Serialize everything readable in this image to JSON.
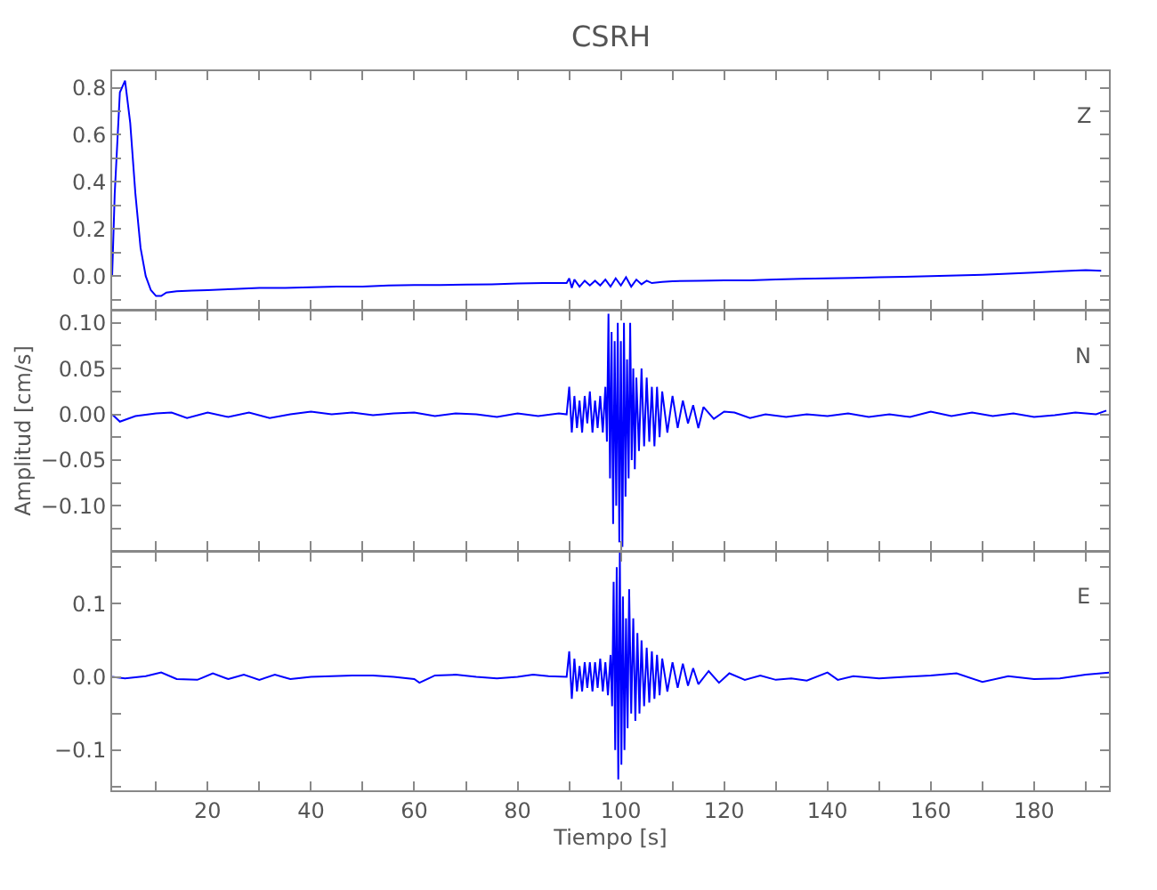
{
  "chart_data": [
    {
      "type": "line",
      "title": "CSRH",
      "annotations": [
        "Z"
      ],
      "xlim": [
        1.5,
        194.5
      ],
      "tick_labels": "y",
      "xticks": [
        {
          "value": 10,
          "label": null
        },
        {
          "value": 20,
          "label": null
        },
        {
          "value": 30,
          "label": null
        },
        {
          "value": 40,
          "label": null
        },
        {
          "value": 50,
          "label": null
        },
        {
          "value": 60,
          "label": null
        },
        {
          "value": 70,
          "label": null
        },
        {
          "value": 80,
          "label": null
        },
        {
          "value": 90,
          "label": null
        },
        {
          "value": 100,
          "label": null
        },
        {
          "value": 110,
          "label": null
        },
        {
          "value": 120,
          "label": null
        },
        {
          "value": 130,
          "label": null
        },
        {
          "value": 140,
          "label": null
        },
        {
          "value": 150,
          "label": null
        },
        {
          "value": 160,
          "label": null
        },
        {
          "value": 170,
          "label": null
        },
        {
          "value": 180,
          "label": null
        },
        {
          "value": 190,
          "label": null
        }
      ],
      "ylim": [
        -0.14,
        0.87
      ],
      "yticks": [
        {
          "value": -0.1,
          "label": null
        },
        {
          "value": 0,
          "label": "0.0"
        },
        {
          "value": 0.1,
          "label": null
        },
        {
          "value": 0.2,
          "label": "0.2"
        },
        {
          "value": 0.3,
          "label": null
        },
        {
          "value": 0.4,
          "label": "0.4"
        },
        {
          "value": 0.5,
          "label": null
        },
        {
          "value": 0.6,
          "label": "0.6"
        },
        {
          "value": 0.7,
          "label": null
        },
        {
          "value": 0.8,
          "label": "0.8"
        }
      ],
      "x": [
        1.5,
        2,
        3,
        4,
        5,
        6,
        7,
        8,
        9,
        10,
        11,
        12,
        14,
        17,
        20,
        25,
        30,
        35,
        40,
        45,
        50,
        55,
        60,
        65,
        70,
        75,
        80,
        85,
        89.5,
        90,
        90.5,
        91,
        92,
        93,
        94,
        95,
        96,
        97,
        98,
        99,
        100,
        101,
        102,
        103,
        104,
        105,
        106,
        108,
        110,
        115,
        120,
        125,
        130,
        135,
        140,
        145,
        150,
        155,
        160,
        165,
        170,
        175,
        180,
        185,
        190,
        193
      ],
      "series": [
        {
          "color": "#0000ff",
          "values": [
            0,
            0.35,
            0.78,
            0.83,
            0.65,
            0.35,
            0.12,
            0.0,
            -0.06,
            -0.085,
            -0.085,
            -0.07,
            -0.065,
            -0.062,
            -0.06,
            -0.055,
            -0.05,
            -0.05,
            -0.048,
            -0.045,
            -0.045,
            -0.04,
            -0.038,
            -0.038,
            -0.036,
            -0.035,
            -0.032,
            -0.03,
            -0.03,
            -0.01,
            -0.05,
            -0.015,
            -0.045,
            -0.02,
            -0.04,
            -0.02,
            -0.04,
            -0.015,
            -0.045,
            -0.01,
            -0.04,
            -0.005,
            -0.045,
            -0.015,
            -0.035,
            -0.02,
            -0.03,
            -0.025,
            -0.022,
            -0.02,
            -0.018,
            -0.018,
            -0.015,
            -0.012,
            -0.01,
            -0.008,
            -0.005,
            -0.003,
            0.0,
            0.002,
            0.005,
            0.01,
            0.015,
            0.02,
            0.025,
            0.022
          ]
        }
      ]
    },
    {
      "type": "line",
      "ylabel": "Amplitud [cm/s]",
      "annotations": [
        "N"
      ],
      "xlim": [
        1.5,
        194.5
      ],
      "tick_labels": "y",
      "xticks": [
        {
          "value": 10,
          "label": null
        },
        {
          "value": 20,
          "label": null
        },
        {
          "value": 30,
          "label": null
        },
        {
          "value": 40,
          "label": null
        },
        {
          "value": 50,
          "label": null
        },
        {
          "value": 60,
          "label": null
        },
        {
          "value": 70,
          "label": null
        },
        {
          "value": 80,
          "label": null
        },
        {
          "value": 90,
          "label": null
        },
        {
          "value": 100,
          "label": null
        },
        {
          "value": 110,
          "label": null
        },
        {
          "value": 120,
          "label": null
        },
        {
          "value": 130,
          "label": null
        },
        {
          "value": 140,
          "label": null
        },
        {
          "value": 150,
          "label": null
        },
        {
          "value": 160,
          "label": null
        },
        {
          "value": 170,
          "label": null
        },
        {
          "value": 180,
          "label": null
        },
        {
          "value": 190,
          "label": null
        }
      ],
      "ylim": [
        -0.148,
        0.112
      ],
      "yticks": [
        {
          "value": -0.125,
          "label": null
        },
        {
          "value": -0.1,
          "label": "−0.10"
        },
        {
          "value": -0.075,
          "label": null
        },
        {
          "value": -0.05,
          "label": "−0.05"
        },
        {
          "value": -0.025,
          "label": null
        },
        {
          "value": 0,
          "label": "0.00"
        },
        {
          "value": 0.025,
          "label": null
        },
        {
          "value": 0.05,
          "label": "0.05"
        },
        {
          "value": 0.075,
          "label": null
        },
        {
          "value": 0.1,
          "label": "0.10"
        }
      ],
      "x": [
        1.5,
        3,
        6,
        10,
        13,
        16,
        20,
        24,
        28,
        32,
        36,
        40,
        44,
        48,
        52,
        56,
        60,
        64,
        68,
        72,
        76,
        80,
        84,
        88,
        89.5,
        90,
        90.5,
        91,
        91.5,
        92,
        92.5,
        93,
        93.5,
        94,
        94.5,
        95,
        95.5,
        96,
        96.5,
        97,
        97.3,
        97.6,
        97.9,
        98.2,
        98.5,
        98.8,
        99.1,
        99.4,
        99.7,
        100,
        100.3,
        100.6,
        100.9,
        101.2,
        101.5,
        101.8,
        102.1,
        102.4,
        102.7,
        103,
        103.5,
        104,
        104.5,
        105,
        105.5,
        106,
        106.5,
        107,
        107.5,
        108,
        109,
        110,
        111,
        112,
        113,
        114,
        115,
        116,
        118,
        120,
        122,
        125,
        128,
        132,
        136,
        140,
        144,
        148,
        152,
        156,
        160,
        164,
        168,
        172,
        176,
        180,
        184,
        188,
        192,
        194
      ],
      "series": [
        {
          "color": "#0000ff",
          "values": [
            0,
            -0.008,
            -0.002,
            0.001,
            0.002,
            -0.004,
            0.002,
            -0.003,
            0.002,
            -0.004,
            0.0,
            0.003,
            0.0,
            0.002,
            -0.001,
            0.001,
            0.002,
            -0.002,
            0.001,
            0.0,
            -0.003,
            0.001,
            -0.002,
            0.001,
            0,
            0.03,
            -0.02,
            0.02,
            -0.015,
            0.015,
            -0.02,
            0.02,
            -0.01,
            0.025,
            -0.02,
            0.015,
            -0.015,
            0.02,
            -0.02,
            0.03,
            -0.03,
            0.11,
            -0.07,
            0.09,
            -0.12,
            0.08,
            -0.1,
            0.1,
            -0.14,
            0.08,
            -0.145,
            0.1,
            -0.09,
            0.06,
            -0.07,
            0.1,
            -0.05,
            0.05,
            -0.06,
            0.04,
            -0.04,
            0.05,
            -0.035,
            0.04,
            -0.03,
            0.03,
            -0.035,
            0.03,
            -0.025,
            0.025,
            -0.02,
            0.02,
            -0.015,
            0.015,
            -0.01,
            0.01,
            -0.015,
            0.008,
            -0.005,
            0.003,
            0.002,
            -0.004,
            0.0,
            -0.003,
            0.0,
            -0.002,
            0.001,
            -0.003,
            0.0,
            -0.003,
            0.003,
            -0.002,
            0.002,
            -0.002,
            0.001,
            -0.003,
            -0.001,
            0.002,
            0.0,
            0.004
          ]
        }
      ]
    },
    {
      "type": "line",
      "xlabel": "Tiempo [s]",
      "annotations": [
        "E"
      ],
      "xlim": [
        1.5,
        194.5
      ],
      "xticks": [
        {
          "value": 10,
          "label": null
        },
        20,
        {
          "value": 30,
          "label": null
        },
        40,
        {
          "value": 50,
          "label": null
        },
        60,
        {
          "value": 70,
          "label": null
        },
        80,
        {
          "value": 90,
          "label": null
        },
        100,
        {
          "value": 110,
          "label": null
        },
        120,
        {
          "value": 130,
          "label": null
        },
        140,
        {
          "value": 150,
          "label": null
        },
        160,
        {
          "value": 170,
          "label": null
        },
        180,
        {
          "value": 190,
          "label": null
        }
      ],
      "ylim": [
        -0.155,
        0.17
      ],
      "yticks": [
        {
          "value": -0.15,
          "label": null
        },
        {
          "value": -0.1,
          "label": "−0.1"
        },
        {
          "value": -0.05,
          "label": null
        },
        {
          "value": 0,
          "label": "0.0"
        },
        {
          "value": 0.05,
          "label": null
        },
        {
          "value": 0.1,
          "label": "0.1"
        },
        {
          "value": 0.15,
          "label": null
        }
      ],
      "x": [
        1.5,
        4,
        8,
        11,
        14,
        18,
        21,
        24,
        27,
        30,
        33,
        36,
        40,
        44,
        48,
        52,
        56,
        60,
        61,
        64,
        68,
        72,
        76,
        80,
        83,
        86,
        89.5,
        90,
        90.5,
        91,
        91.5,
        92,
        92.5,
        93,
        93.5,
        94,
        94.5,
        95,
        95.5,
        96,
        96.5,
        97,
        97.5,
        98,
        98.3,
        98.6,
        98.9,
        99.2,
        99.5,
        99.8,
        100.1,
        100.4,
        100.7,
        101,
        101.3,
        101.6,
        102,
        102.4,
        102.8,
        103.2,
        103.6,
        104,
        104.5,
        105,
        105.5,
        106,
        106.5,
        107,
        107.5,
        108,
        109,
        110,
        111,
        112,
        113,
        114,
        115,
        117,
        119,
        121,
        124,
        127,
        130,
        133,
        136,
        140,
        142,
        145,
        150,
        155,
        160,
        165,
        170,
        175,
        180,
        185,
        190,
        194.5
      ],
      "series": [
        {
          "color": "#0000ff",
          "values": [
            0,
            -0.002,
            0.001,
            0.006,
            -0.003,
            -0.004,
            0.005,
            -0.003,
            0.003,
            -0.004,
            0.003,
            -0.003,
            0.0,
            0.001,
            0.002,
            0.002,
            0.0,
            -0.003,
            -0.008,
            0.002,
            0.003,
            0.0,
            -0.002,
            0.0,
            0.003,
            0.001,
            0.0,
            0.035,
            -0.03,
            0.025,
            -0.02,
            0.015,
            -0.02,
            0.02,
            -0.015,
            0.02,
            -0.02,
            0.02,
            -0.015,
            0.025,
            -0.02,
            0.02,
            -0.025,
            0.03,
            -0.04,
            0.13,
            -0.1,
            0.15,
            -0.14,
            0.17,
            -0.12,
            0.11,
            -0.1,
            0.08,
            -0.07,
            0.12,
            -0.05,
            0.08,
            -0.06,
            0.06,
            -0.05,
            0.05,
            -0.04,
            0.04,
            -0.035,
            0.035,
            -0.03,
            0.03,
            -0.025,
            0.025,
            -0.02,
            0.02,
            -0.015,
            0.018,
            -0.012,
            0.012,
            -0.01,
            0.008,
            -0.008,
            0.005,
            -0.004,
            0.002,
            -0.004,
            -0.002,
            -0.005,
            0.006,
            -0.004,
            0.001,
            -0.002,
            0.0,
            0.002,
            0.005,
            -0.007,
            0.001,
            -0.003,
            -0.002,
            0.003,
            0.006
          ]
        }
      ]
    }
  ]
}
